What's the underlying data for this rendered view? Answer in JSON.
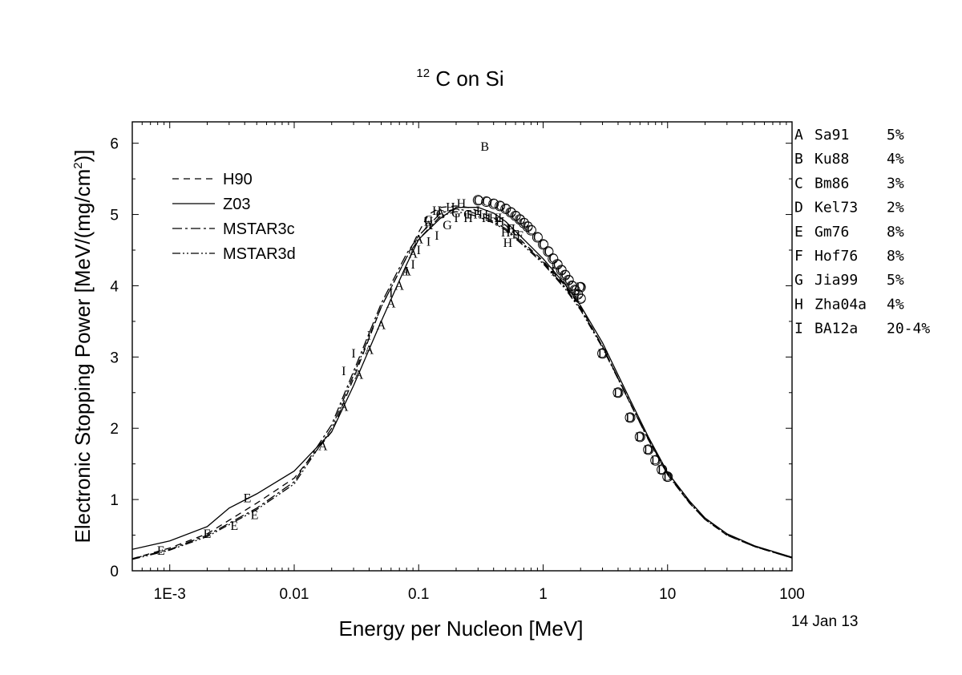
{
  "chart_data": {
    "type": "line",
    "title": {
      "superscript": "12",
      "main": "C on Si"
    },
    "xlabel": "Energy per Nucleon [MeV]",
    "ylabel": "Electronic Stopping Power [MeV/(mg/cm2)]",
    "ylabel_parts": {
      "main": "Electronic Stopping Power [MeV/(mg/cm",
      "sup": "2",
      "end": ")]"
    },
    "x_scale": "log",
    "xlim": [
      0.0005,
      100
    ],
    "ylim": [
      0,
      6.3
    ],
    "x_ticks": [
      {
        "value": 0.001,
        "label": "1E-3"
      },
      {
        "value": 0.01,
        "label": "0.01"
      },
      {
        "value": 0.1,
        "label": "0.1"
      },
      {
        "value": 1,
        "label": "1"
      },
      {
        "value": 10,
        "label": "10"
      },
      {
        "value": 100,
        "label": "100"
      }
    ],
    "y_ticks": [
      {
        "value": 0,
        "label": "0"
      },
      {
        "value": 1,
        "label": "1"
      },
      {
        "value": 2,
        "label": "2"
      },
      {
        "value": 3,
        "label": "3"
      },
      {
        "value": 4,
        "label": "4"
      },
      {
        "value": 5,
        "label": "5"
      },
      {
        "value": 6,
        "label": "6"
      }
    ],
    "legend_placement": "top-left",
    "series": [
      {
        "name": "H90",
        "dash": "dash",
        "x": [
          0.0005,
          0.001,
          0.002,
          0.005,
          0.01,
          0.02,
          0.03,
          0.05,
          0.08,
          0.1,
          0.12,
          0.15,
          0.2,
          0.25,
          0.3,
          0.4,
          0.5,
          0.7,
          1,
          1.5,
          2,
          3,
          5,
          7,
          10,
          15,
          20,
          30,
          50,
          100
        ],
        "y": [
          0.17,
          0.32,
          0.52,
          0.95,
          1.3,
          1.95,
          2.7,
          3.7,
          4.4,
          4.75,
          5.0,
          5.1,
          5.12,
          5.1,
          5.05,
          4.95,
          4.85,
          4.6,
          4.35,
          4.0,
          3.7,
          3.15,
          2.35,
          1.85,
          1.35,
          0.95,
          0.72,
          0.5,
          0.34,
          0.18
        ]
      },
      {
        "name": "Z03",
        "dash": "solid",
        "x": [
          0.0005,
          0.001,
          0.002,
          0.003,
          0.005,
          0.01,
          0.02,
          0.03,
          0.05,
          0.08,
          0.1,
          0.15,
          0.2,
          0.3,
          0.4,
          0.5,
          0.7,
          1,
          1.5,
          2,
          3,
          5,
          7,
          10,
          15,
          20,
          30,
          50,
          100
        ],
        "y": [
          0.3,
          0.42,
          0.62,
          0.88,
          1.08,
          1.4,
          1.95,
          2.6,
          3.5,
          4.3,
          4.65,
          4.95,
          5.1,
          5.1,
          5.02,
          4.9,
          4.65,
          4.38,
          4.02,
          3.72,
          3.2,
          2.4,
          1.88,
          1.38,
          0.98,
          0.74,
          0.52,
          0.35,
          0.19
        ]
      },
      {
        "name": "MSTAR3c",
        "dash": "dashdot",
        "x": [
          0.0005,
          0.001,
          0.002,
          0.005,
          0.01,
          0.02,
          0.03,
          0.05,
          0.08,
          0.1,
          0.15,
          0.2,
          0.25,
          0.3,
          0.4,
          0.5,
          0.7,
          1,
          1.5,
          2,
          3,
          5,
          7,
          10,
          15,
          20,
          30,
          50,
          100
        ],
        "y": [
          0.17,
          0.3,
          0.5,
          0.88,
          1.25,
          2.05,
          2.8,
          3.75,
          4.45,
          4.7,
          5.02,
          5.08,
          5.05,
          5.0,
          4.9,
          4.8,
          4.58,
          4.33,
          3.98,
          3.68,
          3.15,
          2.36,
          1.85,
          1.36,
          0.96,
          0.73,
          0.51,
          0.34,
          0.18
        ]
      },
      {
        "name": "MSTAR3d",
        "dash": "dashdotdot",
        "x": [
          0.0005,
          0.001,
          0.002,
          0.005,
          0.01,
          0.02,
          0.03,
          0.05,
          0.08,
          0.1,
          0.15,
          0.2,
          0.25,
          0.3,
          0.4,
          0.5,
          0.7,
          1,
          1.5,
          2,
          3,
          5,
          7,
          10,
          15,
          20,
          30,
          50,
          100
        ],
        "y": [
          0.16,
          0.29,
          0.48,
          0.86,
          1.22,
          2.0,
          2.75,
          3.7,
          4.4,
          4.65,
          4.98,
          5.04,
          5.01,
          4.97,
          4.88,
          4.78,
          4.56,
          4.31,
          3.96,
          3.66,
          3.13,
          2.35,
          1.84,
          1.35,
          0.95,
          0.72,
          0.5,
          0.34,
          0.18
        ]
      }
    ],
    "references": [
      {
        "letter": "A",
        "name": "Sa91",
        "error": "5%"
      },
      {
        "letter": "B",
        "name": "Ku88",
        "error": "4%"
      },
      {
        "letter": "C",
        "name": "Bm86",
        "error": "3%"
      },
      {
        "letter": "D",
        "name": "Kel73",
        "error": "2%"
      },
      {
        "letter": "E",
        "name": "Gm76",
        "error": "8%"
      },
      {
        "letter": "F",
        "name": "Hof76",
        "error": "8%"
      },
      {
        "letter": "G",
        "name": "Jia99",
        "error": "5%"
      },
      {
        "letter": "H",
        "name": "Zha04a",
        "error": "4%"
      },
      {
        "letter": "I",
        "name": "BA12a",
        "error": "20-4%"
      }
    ],
    "points": [
      {
        "m": "A",
        "x": 0.017,
        "y": 1.75
      },
      {
        "m": "A",
        "x": 0.025,
        "y": 2.3
      },
      {
        "m": "A",
        "x": 0.033,
        "y": 2.75
      },
      {
        "m": "A",
        "x": 0.04,
        "y": 3.1
      },
      {
        "m": "A",
        "x": 0.05,
        "y": 3.45
      },
      {
        "m": "A",
        "x": 0.06,
        "y": 3.75
      },
      {
        "m": "A",
        "x": 0.07,
        "y": 4.0
      },
      {
        "m": "A",
        "x": 0.08,
        "y": 4.2
      },
      {
        "m": "A",
        "x": 0.09,
        "y": 4.45
      },
      {
        "m": "A",
        "x": 0.1,
        "y": 4.65
      },
      {
        "m": "A",
        "x": 0.12,
        "y": 4.85
      },
      {
        "m": "A",
        "x": 0.15,
        "y": 5.02
      },
      {
        "m": "B",
        "x": 0.34,
        "y": 5.95
      },
      {
        "m": "C",
        "x": 0.3,
        "y": 5.2
      },
      {
        "m": "C",
        "x": 0.35,
        "y": 5.18
      },
      {
        "m": "C",
        "x": 0.4,
        "y": 5.15
      },
      {
        "m": "C",
        "x": 0.45,
        "y": 5.12
      },
      {
        "m": "C",
        "x": 0.5,
        "y": 5.08
      },
      {
        "m": "C",
        "x": 0.55,
        "y": 5.03
      },
      {
        "m": "C",
        "x": 0.6,
        "y": 4.98
      },
      {
        "m": "C",
        "x": 0.65,
        "y": 4.93
      },
      {
        "m": "C",
        "x": 0.7,
        "y": 4.88
      },
      {
        "m": "C",
        "x": 0.75,
        "y": 4.83
      },
      {
        "m": "C",
        "x": 0.8,
        "y": 4.78
      },
      {
        "m": "C",
        "x": 0.9,
        "y": 4.68
      },
      {
        "m": "C",
        "x": 1.0,
        "y": 4.58
      },
      {
        "m": "C",
        "x": 1.1,
        "y": 4.48
      },
      {
        "m": "C",
        "x": 1.2,
        "y": 4.38
      },
      {
        "m": "C",
        "x": 1.3,
        "y": 4.3
      },
      {
        "m": "C",
        "x": 1.4,
        "y": 4.22
      },
      {
        "m": "C",
        "x": 1.5,
        "y": 4.15
      },
      {
        "m": "C",
        "x": 1.6,
        "y": 4.08
      },
      {
        "m": "C",
        "x": 1.7,
        "y": 4.0
      },
      {
        "m": "C",
        "x": 1.8,
        "y": 3.94
      },
      {
        "m": "C",
        "x": 1.9,
        "y": 3.88
      },
      {
        "m": "C",
        "x": 2.0,
        "y": 3.82
      },
      {
        "m": "D",
        "x": 2.0,
        "y": 3.98
      },
      {
        "m": "D",
        "x": 3.0,
        "y": 3.05
      },
      {
        "m": "D",
        "x": 4.0,
        "y": 2.5
      },
      {
        "m": "D",
        "x": 5.0,
        "y": 2.15
      },
      {
        "m": "D",
        "x": 6.0,
        "y": 1.88
      },
      {
        "m": "D",
        "x": 7.0,
        "y": 1.7
      },
      {
        "m": "D",
        "x": 8.0,
        "y": 1.55
      },
      {
        "m": "D",
        "x": 9.0,
        "y": 1.42
      },
      {
        "m": "D",
        "x": 10.0,
        "y": 1.32
      },
      {
        "m": "E",
        "x": 0.00085,
        "y": 0.28
      },
      {
        "m": "E",
        "x": 0.002,
        "y": 0.52
      },
      {
        "m": "E",
        "x": 0.0033,
        "y": 0.63
      },
      {
        "m": "E",
        "x": 0.0042,
        "y": 1.02
      },
      {
        "m": "E",
        "x": 0.0048,
        "y": 0.78
      },
      {
        "m": "F",
        "x": 0.55,
        "y": 4.8
      },
      {
        "m": "F",
        "x": 0.6,
        "y": 4.72
      },
      {
        "m": "F",
        "x": 0.65,
        "y": 4.7
      },
      {
        "m": "G",
        "x": 0.12,
        "y": 4.92
      },
      {
        "m": "G",
        "x": 0.15,
        "y": 5.0
      },
      {
        "m": "G",
        "x": 0.17,
        "y": 4.85
      },
      {
        "m": "G",
        "x": 0.2,
        "y": 5.02
      },
      {
        "m": "G",
        "x": 0.25,
        "y": 5.0
      },
      {
        "m": "H",
        "x": 0.12,
        "y": 4.9
      },
      {
        "m": "H",
        "x": 0.14,
        "y": 5.05
      },
      {
        "m": "H",
        "x": 0.18,
        "y": 5.1
      },
      {
        "m": "H",
        "x": 0.22,
        "y": 5.15
      },
      {
        "m": "H",
        "x": 0.25,
        "y": 4.95
      },
      {
        "m": "H",
        "x": 0.3,
        "y": 5.0
      },
      {
        "m": "H",
        "x": 0.35,
        "y": 4.95
      },
      {
        "m": "H",
        "x": 0.4,
        "y": 4.95
      },
      {
        "m": "H",
        "x": 0.45,
        "y": 4.9
      },
      {
        "m": "H",
        "x": 0.5,
        "y": 4.75
      },
      {
        "m": "H",
        "x": 0.52,
        "y": 4.6
      },
      {
        "m": "H",
        "x": 0.55,
        "y": 4.8
      },
      {
        "m": "I",
        "x": 0.025,
        "y": 2.8
      },
      {
        "m": "I",
        "x": 0.03,
        "y": 3.05
      },
      {
        "m": "I",
        "x": 0.04,
        "y": 3.3
      },
      {
        "m": "I",
        "x": 0.06,
        "y": 3.9
      },
      {
        "m": "I",
        "x": 0.08,
        "y": 4.2
      },
      {
        "m": "I",
        "x": 0.09,
        "y": 4.3
      },
      {
        "m": "I",
        "x": 0.1,
        "y": 4.5
      },
      {
        "m": "I",
        "x": 0.12,
        "y": 4.62
      },
      {
        "m": "I",
        "x": 0.14,
        "y": 4.7
      },
      {
        "m": "I",
        "x": 0.2,
        "y": 4.95
      },
      {
        "m": "I",
        "x": 0.25,
        "y": 5.0
      },
      {
        "m": "I",
        "x": 0.3,
        "y": 5.05
      },
      {
        "m": "I",
        "x": 0.35,
        "y": 5.0
      },
      {
        "m": "I",
        "x": 0.45,
        "y": 4.95
      },
      {
        "m": "I",
        "x": 1.2,
        "y": 4.2
      }
    ],
    "date": "14 Jan 13"
  }
}
